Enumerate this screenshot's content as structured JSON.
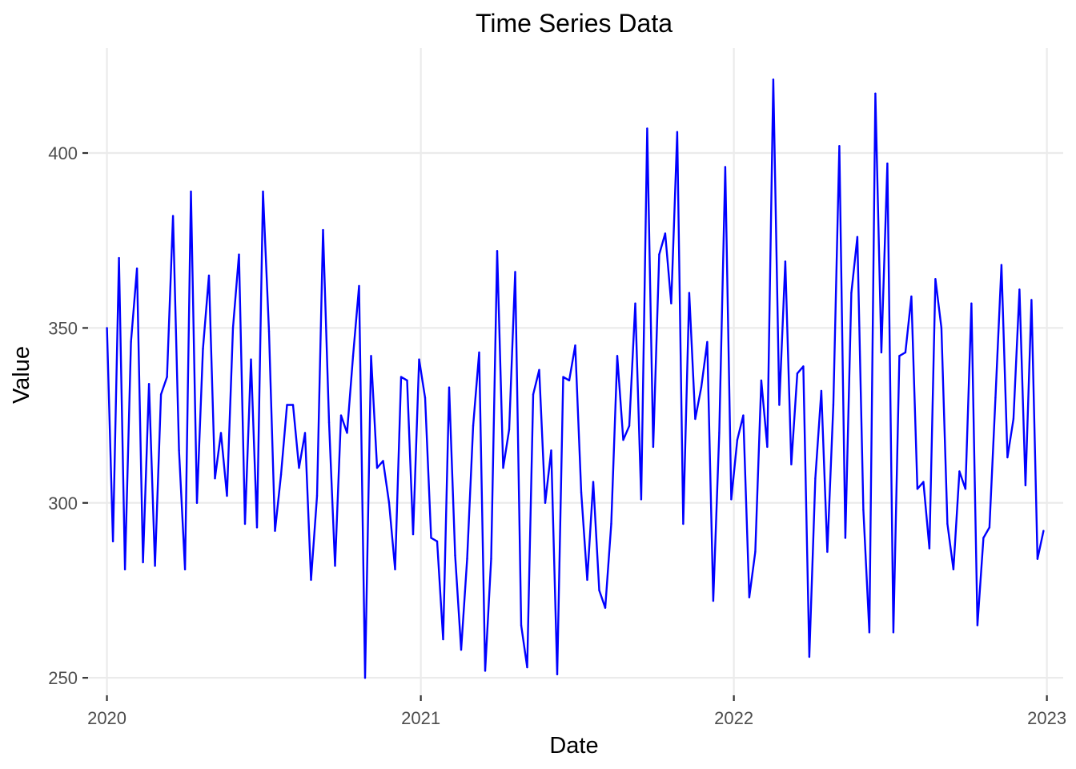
{
  "chart_data": {
    "type": "line",
    "title": "Time Series Data",
    "xlabel": "Date",
    "ylabel": "Value",
    "x_ticks": [
      "2020",
      "2021",
      "2022",
      "2023"
    ],
    "y_ticks": [
      250,
      300,
      350,
      400
    ],
    "ylim": [
      245,
      430
    ],
    "xlim": [
      "2019-12-10",
      "2023-01-20"
    ],
    "grid": true,
    "legend": "none",
    "line_color": "#0000ff",
    "series": [
      {
        "x": [
          "2020-01-01",
          "2020-01-08",
          "2020-01-15",
          "2020-01-22",
          "2020-01-29",
          "2020-02-05",
          "2020-02-12",
          "2020-02-19",
          "2020-02-26",
          "2020-03-04",
          "2020-03-11",
          "2020-03-18",
          "2020-03-25",
          "2020-04-01",
          "2020-04-08",
          "2020-04-15",
          "2020-04-22",
          "2020-04-29",
          "2020-05-06",
          "2020-05-13",
          "2020-05-20",
          "2020-05-27",
          "2020-06-03",
          "2020-06-10",
          "2020-06-17",
          "2020-06-24",
          "2020-07-01",
          "2020-07-08",
          "2020-07-15",
          "2020-07-22",
          "2020-07-29",
          "2020-08-05",
          "2020-08-12",
          "2020-08-19",
          "2020-08-26",
          "2020-09-02",
          "2020-09-09",
          "2020-09-16",
          "2020-09-23",
          "2020-09-30",
          "2020-10-07",
          "2020-10-14",
          "2020-10-21",
          "2020-10-28",
          "2020-11-04",
          "2020-11-11",
          "2020-11-18",
          "2020-11-25",
          "2020-12-02",
          "2020-12-09",
          "2020-12-16",
          "2020-12-23",
          "2020-12-30",
          "2021-01-06",
          "2021-01-13",
          "2021-01-20",
          "2021-01-27",
          "2021-02-03",
          "2021-02-10",
          "2021-02-17",
          "2021-02-24",
          "2021-03-03",
          "2021-03-10",
          "2021-03-17",
          "2021-03-24",
          "2021-03-31",
          "2021-04-07",
          "2021-04-14",
          "2021-04-21",
          "2021-04-28",
          "2021-05-05",
          "2021-05-12",
          "2021-05-19",
          "2021-05-26",
          "2021-06-02",
          "2021-06-09",
          "2021-06-16",
          "2021-06-23",
          "2021-06-30",
          "2021-07-07",
          "2021-07-14",
          "2021-07-21",
          "2021-07-28",
          "2021-08-04",
          "2021-08-11",
          "2021-08-18",
          "2021-08-25",
          "2021-09-01",
          "2021-09-08",
          "2021-09-15",
          "2021-09-22",
          "2021-09-29",
          "2021-10-06",
          "2021-10-13",
          "2021-10-20",
          "2021-10-27",
          "2021-11-03",
          "2021-11-10",
          "2021-11-17",
          "2021-11-24",
          "2021-12-01",
          "2021-12-08",
          "2021-12-15",
          "2021-12-22",
          "2021-12-29",
          "2022-01-05",
          "2022-01-12",
          "2022-01-19",
          "2022-01-26",
          "2022-02-02",
          "2022-02-09",
          "2022-02-16",
          "2022-02-23",
          "2022-03-02",
          "2022-03-09",
          "2022-03-16",
          "2022-03-23",
          "2022-03-30",
          "2022-04-06",
          "2022-04-13",
          "2022-04-20",
          "2022-04-27",
          "2022-05-04",
          "2022-05-11",
          "2022-05-18",
          "2022-05-25",
          "2022-06-01",
          "2022-06-08",
          "2022-06-15",
          "2022-06-22",
          "2022-06-29",
          "2022-07-06",
          "2022-07-13",
          "2022-07-20",
          "2022-07-27",
          "2022-08-03",
          "2022-08-10",
          "2022-08-17",
          "2022-08-24",
          "2022-08-31",
          "2022-09-07",
          "2022-09-14",
          "2022-09-21",
          "2022-09-28",
          "2022-10-05",
          "2022-10-12",
          "2022-10-19",
          "2022-10-26",
          "2022-11-02",
          "2022-11-09",
          "2022-11-16",
          "2022-11-23",
          "2022-11-30",
          "2022-12-07",
          "2022-12-14",
          "2022-12-21",
          "2022-12-28"
        ],
        "y": [
          350,
          289,
          370,
          281,
          346,
          367,
          283,
          334,
          282,
          331,
          336,
          382,
          315,
          281,
          389,
          300,
          344,
          365,
          307,
          320,
          302,
          350,
          371,
          294,
          341,
          293,
          389,
          349,
          292,
          308,
          328,
          328,
          310,
          320,
          278,
          302,
          378,
          323,
          282,
          325,
          320,
          342,
          362,
          250,
          342,
          310,
          312,
          300,
          281,
          336,
          335,
          291,
          341,
          330,
          290,
          289,
          261,
          333,
          285,
          258,
          284,
          322,
          343,
          252,
          284,
          372,
          310,
          321,
          366,
          265,
          253,
          331,
          338,
          300,
          315,
          251,
          336,
          335,
          345,
          303,
          278,
          306,
          275,
          270,
          294,
          342,
          318,
          322,
          357,
          301,
          407,
          316,
          371,
          377,
          357,
          406,
          294,
          360,
          324,
          333,
          346,
          272,
          320,
          396,
          301,
          318,
          325,
          273,
          286,
          335,
          316,
          421,
          328,
          369,
          311,
          337,
          339,
          256,
          307,
          332,
          286,
          328,
          402,
          290,
          360,
          376,
          298,
          263,
          417,
          343,
          397,
          263,
          342,
          343,
          359,
          304,
          306,
          287,
          364,
          350,
          294,
          281,
          309,
          304,
          357,
          265,
          290,
          293,
          330,
          368,
          313,
          324,
          361,
          305,
          358,
          284,
          292
        ]
      }
    ]
  }
}
